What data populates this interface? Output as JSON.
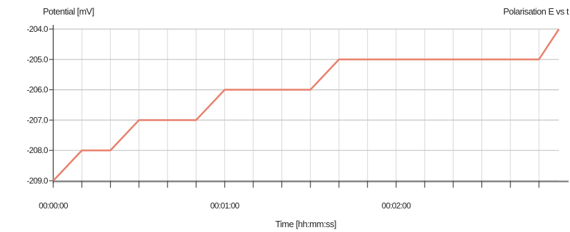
{
  "chart_data": {
    "type": "line",
    "title": "Polarisation E vs t",
    "ylabel": "Potential [mV]",
    "xlabel": "Time [hh:mm:ss]",
    "xlim": [
      0,
      177
    ],
    "ylim": [
      -209.0,
      -204.0
    ],
    "y_ticks": [
      "-204.0",
      "-205.0",
      "-206.0",
      "-207.0",
      "-208.0",
      "-209.0"
    ],
    "x_ticks": [
      {
        "value": 0,
        "label": "00:00:00"
      },
      {
        "value": 60,
        "label": "00:01:00"
      },
      {
        "value": 120,
        "label": "00:02:00"
      }
    ],
    "grid": true,
    "series": [
      {
        "color": "#e8826e",
        "x": [
          0,
          10,
          20,
          30,
          40,
          50,
          60,
          70,
          80,
          90,
          100,
          110,
          120,
          130,
          140,
          150,
          160,
          170,
          177
        ],
        "y": [
          -209.0,
          -208.0,
          -208.0,
          -207.0,
          -207.0,
          -207.0,
          -206.0,
          -206.0,
          -206.0,
          -206.0,
          -205.0,
          -205.0,
          -205.0,
          -205.0,
          -205.0,
          -205.0,
          -205.0,
          -205.0,
          -204.0
        ]
      }
    ]
  }
}
